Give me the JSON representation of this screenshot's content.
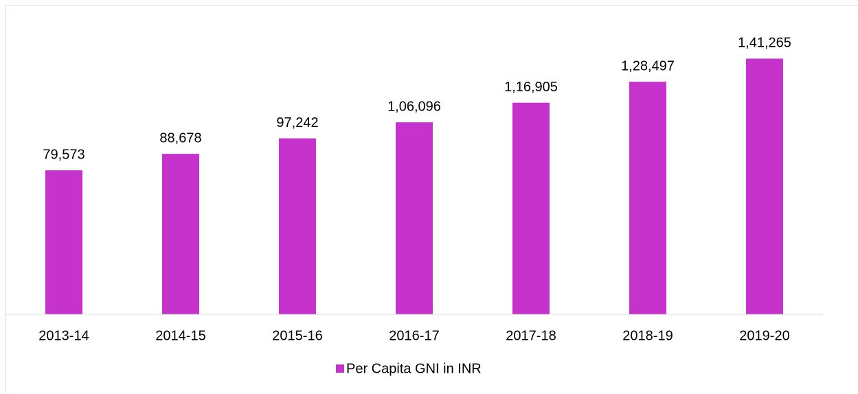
{
  "chart_data": {
    "type": "bar",
    "categories": [
      "2013-14",
      "2014-15",
      "2015-16",
      "2016-17",
      "2017-18",
      "2018-19",
      "2019-20"
    ],
    "series": [
      {
        "name": "Per Capita GNI in INR",
        "color": "#c633cc",
        "values": [
          79573,
          88678,
          97242,
          106096,
          116905,
          128497,
          141265
        ],
        "value_labels": [
          "79,573",
          "88,678",
          "97,242",
          "1,06,096",
          "1,16,905",
          "1,28,497",
          "1,41,265"
        ]
      }
    ],
    "ylim": [
      0,
      160000
    ],
    "legend": "bottom"
  }
}
